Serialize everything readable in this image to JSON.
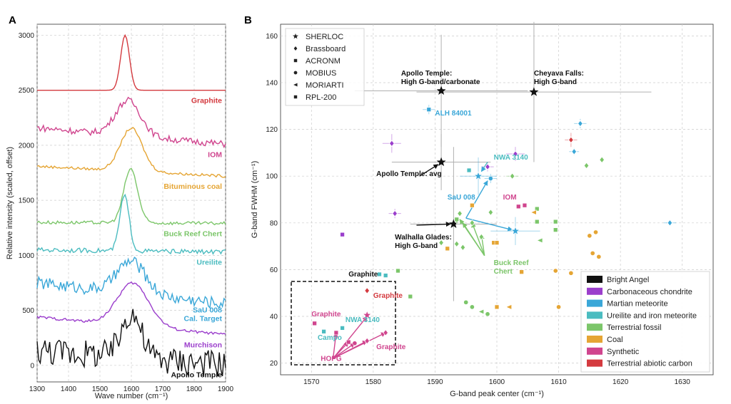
{
  "panels": {
    "a": "A",
    "b": "B"
  },
  "chart_data": [
    {
      "type": "line",
      "xlabel": "Wave number (cm⁻¹)",
      "ylabel": "Relative intensity (scaled, offset)",
      "xlim": [
        1300,
        1900
      ],
      "ylim": [
        -150,
        3100
      ],
      "xticks": [
        1300,
        1400,
        1500,
        1600,
        1700,
        1800,
        1900
      ],
      "yticks": [
        0,
        500,
        1000,
        1500,
        2000,
        2500,
        3000
      ],
      "grid": true,
      "series": [
        {
          "name": "Graphite",
          "color": "#d43a3f",
          "kind": "peak",
          "baseline": 2500,
          "peak_center": 1580,
          "peak_height": 500,
          "width": 14,
          "noise": 0,
          "end_level": 2500
        },
        {
          "name": "IOM",
          "color": "#d0458e",
          "kind": "broad",
          "baseline": 2160,
          "peak_center": 1590,
          "peak_height": 320,
          "width": 40,
          "noise": 30,
          "end_level": 2010
        },
        {
          "name": "Bituminous coal",
          "color": "#e5a534",
          "kind": "broad",
          "baseline": 1810,
          "peak_center": 1600,
          "peak_height": 390,
          "width": 35,
          "noise": 12,
          "end_level": 1720
        },
        {
          "name": "Buck Reef Chert",
          "color": "#7cc66a",
          "kind": "broad",
          "baseline": 1300,
          "peak_center": 1598,
          "peak_height": 490,
          "width": 22,
          "noise": 15,
          "end_level": 1290
        },
        {
          "name": "Ureilite",
          "color": "#4bbcc0",
          "kind": "broad",
          "baseline": 1050,
          "peak_center": 1578,
          "peak_height": 500,
          "width": 15,
          "noise": 20,
          "end_level": 1030
        },
        {
          "name": "SaU 008\nCal. Target",
          "color": "#3aa7d8",
          "kind": "broad",
          "baseline": 750,
          "peak_center": 1600,
          "peak_height": 290,
          "width": 45,
          "noise": 55,
          "end_level": 560
        },
        {
          "name": "Murchison",
          "color": "#9b3ecc",
          "kind": "broad",
          "baseline": 440,
          "peak_center": 1605,
          "peak_height": 390,
          "width": 50,
          "noise": 12,
          "end_level": 280
        },
        {
          "name": "Apollo Temple",
          "color": "#111111",
          "kind": "broad",
          "baseline": 140,
          "peak_center": 1600,
          "peak_height": 410,
          "width": 30,
          "noise": 130,
          "end_level": 10
        }
      ]
    },
    {
      "type": "scatter",
      "xlabel": "G-band peak center (cm⁻¹)",
      "ylabel": "G-band FWHM (cm⁻¹)",
      "xlim": [
        1565,
        1635
      ],
      "ylim": [
        15,
        165
      ],
      "xticks": [
        1570,
        1580,
        1590,
        1600,
        1610,
        1620,
        1630
      ],
      "yticks": [
        20,
        40,
        60,
        80,
        100,
        120,
        140,
        160
      ],
      "grid": true,
      "marker_legend": [
        {
          "label": "SHERLOC",
          "marker": "star"
        },
        {
          "label": "Brassboard",
          "marker": "diamond"
        },
        {
          "label": "ACRONM",
          "marker": "square"
        },
        {
          "label": "MOBIUS",
          "marker": "circle"
        },
        {
          "label": "MORIARTI",
          "marker": "triangle"
        },
        {
          "label": "RPL-200",
          "marker": "xsquare"
        }
      ],
      "color_legend": [
        {
          "label": "Bright Angel",
          "color": "#111111"
        },
        {
          "label": "Carbonaceous chondrite",
          "color": "#9b3ecc"
        },
        {
          "label": "Martian meteorite",
          "color": "#3aa7d8"
        },
        {
          "label": "Ureilite and iron meteorite",
          "color": "#4bbcc0"
        },
        {
          "label": "Terrestrial fossil",
          "color": "#7cc66a"
        },
        {
          "label": "Coal",
          "color": "#e5a534"
        },
        {
          "label": "Synthetic",
          "color": "#d0458e"
        },
        {
          "label": "Terrestrial abiotic carbon",
          "color": "#d43a3f"
        }
      ],
      "points": [
        {
          "x": 1591,
          "y": 136.5,
          "marker": "star",
          "color": "#111111",
          "xerr": 14,
          "yerr": 24
        },
        {
          "x": 1606,
          "y": 136,
          "marker": "star",
          "color": "#111111",
          "xerr": 19,
          "yerr": 30
        },
        {
          "x": 1591,
          "y": 106,
          "marker": "star",
          "color": "#111111",
          "xerr": 8,
          "yerr": 12
        },
        {
          "x": 1593,
          "y": 79.5,
          "marker": "star",
          "color": "#111111",
          "xerr": 7,
          "yerr": 33
        },
        {
          "x": 1597,
          "y": 100,
          "marker": "star",
          "color": "#3aa7d8",
          "xerr": 3,
          "yerr": 8
        },
        {
          "x": 1603,
          "y": 76.5,
          "marker": "star",
          "color": "#3aa7d8",
          "xerr": 4,
          "yerr": 6
        },
        {
          "x": 1583,
          "y": 114,
          "marker": "diamond",
          "color": "#9b3ecc",
          "xerr": 1.5,
          "yerr": 4
        },
        {
          "x": 1583.5,
          "y": 84,
          "marker": "diamond",
          "color": "#9b3ecc",
          "xerr": 1,
          "yerr": 2
        },
        {
          "x": 1598.5,
          "y": 104,
          "marker": "diamond",
          "color": "#9b3ecc",
          "xerr": 1,
          "yerr": 2
        },
        {
          "x": 1603,
          "y": 109.5,
          "marker": "diamond",
          "color": "#9b3ecc",
          "xerr": 1.5,
          "yerr": 3
        },
        {
          "x": 1575,
          "y": 75,
          "marker": "xsquare",
          "color": "#9b3ecc",
          "xerr": 0,
          "yerr": 0
        },
        {
          "x": 1613.5,
          "y": 122.5,
          "marker": "diamond",
          "color": "#3aa7d8",
          "xerr": 1,
          "yerr": 2
        },
        {
          "x": 1612.5,
          "y": 110.5,
          "marker": "diamond",
          "color": "#3aa7d8",
          "xerr": 0.8,
          "yerr": 1.5
        },
        {
          "x": 1628,
          "y": 80,
          "marker": "diamond",
          "color": "#3aa7d8",
          "xerr": 1,
          "yerr": 1
        },
        {
          "x": 1599,
          "y": 99,
          "marker": "circle",
          "color": "#3aa7d8",
          "xerr": 1,
          "yerr": 2
        },
        {
          "x": 1589,
          "y": 128.5,
          "marker": "square",
          "color": "#3aa7d8",
          "xerr": 1,
          "yerr": 2
        },
        {
          "x": 1595.5,
          "y": 102.5,
          "marker": "square",
          "color": "#4bbcc0",
          "xerr": 0,
          "yerr": 0
        },
        {
          "x": 1581,
          "y": 58,
          "marker": "square",
          "color": "#4bbcc0",
          "xerr": 0,
          "yerr": 0
        },
        {
          "x": 1582,
          "y": 57.5,
          "marker": "square",
          "color": "#4bbcc0",
          "xerr": 0,
          "yerr": 0
        },
        {
          "x": 1575,
          "y": 35,
          "marker": "square",
          "color": "#4bbcc0",
          "xerr": 0,
          "yerr": 0
        },
        {
          "x": 1572,
          "y": 33.5,
          "marker": "square",
          "color": "#4bbcc0",
          "xerr": 0,
          "yerr": 0
        },
        {
          "x": 1614.5,
          "y": 104.5,
          "marker": "diamond",
          "color": "#7cc66a",
          "xerr": 0,
          "yerr": 0
        },
        {
          "x": 1617,
          "y": 107,
          "marker": "diamond",
          "color": "#7cc66a",
          "xerr": 0,
          "yerr": 0
        },
        {
          "x": 1602.5,
          "y": 100,
          "marker": "diamond",
          "color": "#7cc66a",
          "xerr": 1,
          "yerr": 1
        },
        {
          "x": 1594,
          "y": 84,
          "marker": "diamond",
          "color": "#7cc66a",
          "xerr": 0,
          "yerr": 0
        },
        {
          "x": 1593.5,
          "y": 81,
          "marker": "diamond",
          "color": "#7cc66a",
          "xerr": 0,
          "yerr": 0
        },
        {
          "x": 1596,
          "y": 80,
          "marker": "diamond",
          "color": "#7cc66a",
          "xerr": 0,
          "yerr": 0
        },
        {
          "x": 1599,
          "y": 84.5,
          "marker": "diamond",
          "color": "#7cc66a",
          "xerr": 0,
          "yerr": 0
        },
        {
          "x": 1593.5,
          "y": 71,
          "marker": "diamond",
          "color": "#7cc66a",
          "xerr": 0,
          "yerr": 0
        },
        {
          "x": 1594.5,
          "y": 69.5,
          "marker": "diamond",
          "color": "#7cc66a",
          "xerr": 0,
          "yerr": 0
        },
        {
          "x": 1591,
          "y": 71.5,
          "marker": "diamond",
          "color": "#7cc66a",
          "xerr": 0,
          "yerr": 0
        },
        {
          "x": 1597.5,
          "y": 74,
          "marker": "diamond",
          "color": "#7cc66a",
          "xerr": 0,
          "yerr": 0
        },
        {
          "x": 1584,
          "y": 59.5,
          "marker": "square",
          "color": "#7cc66a",
          "xerr": 0,
          "yerr": 0
        },
        {
          "x": 1586,
          "y": 48.5,
          "marker": "square",
          "color": "#7cc66a",
          "xerr": 0,
          "yerr": 0
        },
        {
          "x": 1593.5,
          "y": 81.5,
          "marker": "square",
          "color": "#7cc66a",
          "xerr": 0,
          "yerr": 0
        },
        {
          "x": 1606.5,
          "y": 86,
          "marker": "square",
          "color": "#7cc66a",
          "xerr": 0,
          "yerr": 0
        },
        {
          "x": 1609.5,
          "y": 80.5,
          "marker": "square",
          "color": "#7cc66a",
          "xerr": 0,
          "yerr": 0
        },
        {
          "x": 1609.5,
          "y": 77,
          "marker": "square",
          "color": "#7cc66a",
          "xerr": 0,
          "yerr": 0
        },
        {
          "x": 1606.5,
          "y": 80.5,
          "marker": "square",
          "color": "#7cc66a",
          "xerr": 0,
          "yerr": 0
        },
        {
          "x": 1607,
          "y": 72.5,
          "marker": "triangle",
          "color": "#7cc66a",
          "xerr": 0,
          "yerr": 0
        },
        {
          "x": 1595,
          "y": 46,
          "marker": "circle",
          "color": "#7cc66a",
          "xerr": 0,
          "yerr": 0
        },
        {
          "x": 1596,
          "y": 44,
          "marker": "circle",
          "color": "#7cc66a",
          "xerr": 0,
          "yerr": 0
        },
        {
          "x": 1597.5,
          "y": 42,
          "marker": "triangle",
          "color": "#7cc66a",
          "xerr": 0,
          "yerr": 0
        },
        {
          "x": 1598.5,
          "y": 41,
          "marker": "circle",
          "color": "#7cc66a",
          "xerr": 0,
          "yerr": 0
        },
        {
          "x": 1596,
          "y": 87.5,
          "marker": "square",
          "color": "#e5a534",
          "xerr": 0,
          "yerr": 0
        },
        {
          "x": 1592,
          "y": 69,
          "marker": "square",
          "color": "#e5a534",
          "xerr": 0,
          "yerr": 0
        },
        {
          "x": 1599.5,
          "y": 71.5,
          "marker": "square",
          "color": "#e5a534",
          "xerr": 0,
          "yerr": 0
        },
        {
          "x": 1600,
          "y": 71.5,
          "marker": "square",
          "color": "#e5a534",
          "xerr": 0,
          "yerr": 0
        },
        {
          "x": 1604,
          "y": 59,
          "marker": "square",
          "color": "#e5a534",
          "xerr": 0,
          "yerr": 0
        },
        {
          "x": 1600,
          "y": 44,
          "marker": "square",
          "color": "#e5a534",
          "xerr": 0,
          "yerr": 0
        },
        {
          "x": 1602,
          "y": 44,
          "marker": "triangle",
          "color": "#e5a534",
          "xerr": 0,
          "yerr": 0
        },
        {
          "x": 1606,
          "y": 84.5,
          "marker": "triangle",
          "color": "#e5a534",
          "xerr": 0,
          "yerr": 0
        },
        {
          "x": 1609.5,
          "y": 59.5,
          "marker": "circle",
          "color": "#e5a534",
          "xerr": 0,
          "yerr": 0
        },
        {
          "x": 1610,
          "y": 44,
          "marker": "circle",
          "color": "#e5a534",
          "xerr": 0,
          "yerr": 0
        },
        {
          "x": 1612,
          "y": 58.5,
          "marker": "circle",
          "color": "#e5a534",
          "xerr": 0,
          "yerr": 0
        },
        {
          "x": 1615,
          "y": 74.5,
          "marker": "circle",
          "color": "#e5a534",
          "xerr": 0,
          "yerr": 0
        },
        {
          "x": 1616,
          "y": 76,
          "marker": "circle",
          "color": "#e5a534",
          "xerr": 0,
          "yerr": 0
        },
        {
          "x": 1615.5,
          "y": 67,
          "marker": "circle",
          "color": "#e5a534",
          "xerr": 0,
          "yerr": 0
        },
        {
          "x": 1616.5,
          "y": 65.5,
          "marker": "circle",
          "color": "#e5a534",
          "xerr": 0,
          "yerr": 0
        },
        {
          "x": 1603.5,
          "y": 87,
          "marker": "square",
          "color": "#d0458e",
          "xerr": 0,
          "yerr": 0
        },
        {
          "x": 1604.5,
          "y": 87.5,
          "marker": "square",
          "color": "#d0458e",
          "xerr": 0,
          "yerr": 0
        },
        {
          "x": 1570.5,
          "y": 37,
          "marker": "square",
          "color": "#d0458e",
          "xerr": 0,
          "yerr": 0
        },
        {
          "x": 1574,
          "y": 33,
          "marker": "xsquare",
          "color": "#d0458e",
          "xerr": 0,
          "yerr": 0
        },
        {
          "x": 1576,
          "y": 29,
          "marker": "square",
          "color": "#d0458e",
          "xerr": 0,
          "yerr": 0
        },
        {
          "x": 1577,
          "y": 28.5,
          "marker": "circle",
          "color": "#d0458e",
          "xerr": 0,
          "yerr": 0
        },
        {
          "x": 1579,
          "y": 29.5,
          "marker": "diamond",
          "color": "#d0458e",
          "xerr": 0,
          "yerr": 0
        },
        {
          "x": 1582,
          "y": 33,
          "marker": "diamond",
          "color": "#d0458e",
          "xerr": 0,
          "yerr": 0
        },
        {
          "x": 1579,
          "y": 40.5,
          "marker": "star",
          "color": "#d0458e",
          "xerr": 0,
          "yerr": 0
        },
        {
          "x": 1579,
          "y": 51,
          "marker": "diamond",
          "color": "#d43a3f",
          "xerr": 0,
          "yerr": 0
        },
        {
          "x": 1612,
          "y": 115.5,
          "marker": "diamond",
          "color": "#d43a3f",
          "xerr": 1,
          "yerr": 3
        }
      ],
      "annotations": [
        {
          "text": "Apollo Temple:\nHigh G-band/carbonate",
          "color": "#111111",
          "x": 1584.5,
          "y": 143
        },
        {
          "text": "Cheyava Falls:\nHigh G-band",
          "color": "#111111",
          "x": 1606,
          "y": 143
        },
        {
          "text": "ALH 84001",
          "color": "#3aa7d8",
          "x": 1590,
          "y": 126
        },
        {
          "text": "NWA 3140",
          "color": "#4bbcc0",
          "x": 1599.5,
          "y": 107
        },
        {
          "text": "Apollo Temple: avg",
          "color": "#111111",
          "x": 1580.5,
          "y": 100
        },
        {
          "text": "SaU 008",
          "color": "#3aa7d8",
          "x": 1592,
          "y": 90
        },
        {
          "text": "IOM",
          "color": "#d0458e",
          "x": 1601,
          "y": 90
        },
        {
          "text": "Walhalla Glades:\nHigh G-band",
          "color": "#111111",
          "x": 1583.5,
          "y": 73
        },
        {
          "text": "Buck Reef\nChert",
          "color": "#7cc66a",
          "x": 1599.5,
          "y": 62
        },
        {
          "text": "Graphite",
          "color": "#111111",
          "x": 1576,
          "y": 57
        },
        {
          "text": "Graphite",
          "color": "#d43a3f",
          "x": 1580,
          "y": 48
        },
        {
          "text": "Graphite",
          "color": "#d0458e",
          "x": 1570,
          "y": 40
        },
        {
          "text": "NWA 3140",
          "color": "#4bbcc0",
          "x": 1575.5,
          "y": 37.5
        },
        {
          "text": "Campo",
          "color": "#4bbcc0",
          "x": 1571,
          "y": 30
        },
        {
          "text": "HOPG",
          "color": "#d0458e",
          "x": 1571.5,
          "y": 21
        },
        {
          "text": "Graphite",
          "color": "#d0458e",
          "x": 1580.5,
          "y": 26
        }
      ]
    }
  ]
}
